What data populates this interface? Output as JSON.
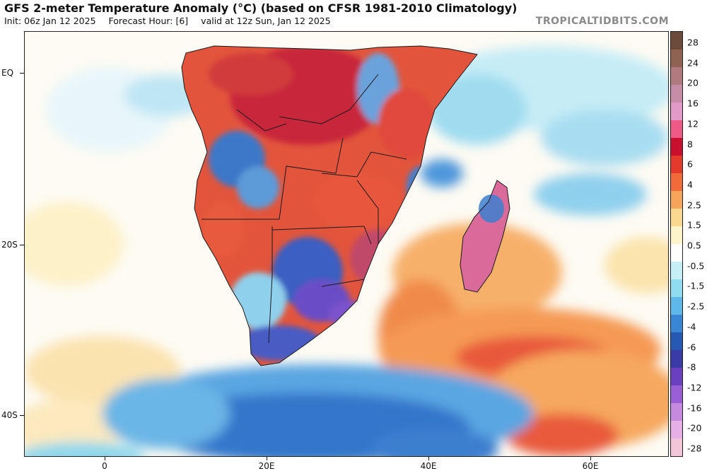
{
  "header": {
    "title": "GFS 2-meter Temperature Anomaly (°C) (based on CFSR 1981-2010 Climatology)",
    "init": "Init: 06z Jan 12 2025",
    "forecast_hour": "Forecast Hour: [6]",
    "valid": "valid at 12z Sun, Jan 12 2025"
  },
  "site": "TROPICALTIDBITS.COM",
  "axes": {
    "lat_labels": [
      "EQ",
      "20S",
      "40S"
    ],
    "lon_labels": [
      "0",
      "20E",
      "40E",
      "60E"
    ]
  },
  "colorbar": {
    "labels": [
      "28",
      "24",
      "20",
      "16",
      "12",
      "8",
      "6",
      "4",
      "2.5",
      "1.5",
      "0.5",
      "-0.5",
      "-1.5",
      "-2.5",
      "-4",
      "-6",
      "-8",
      "-12",
      "-16",
      "-20",
      "-28"
    ],
    "colors": [
      "#6b4a3a",
      "#8e6352",
      "#b07a7e",
      "#c88da6",
      "#e49ac8",
      "#ee5a85",
      "#c8102e",
      "#e33a2b",
      "#f06a3a",
      "#f6a45a",
      "#fbd890",
      "#fdf4cc",
      "#ffffff",
      "#c7f0f6",
      "#8fdcee",
      "#5fb8ea",
      "#3a86d6",
      "#2659b3",
      "#3b3ba8",
      "#6a3fc0",
      "#9a5fd6",
      "#c48ae0",
      "#e6b0e6",
      "#f2c6d8"
    ]
  }
}
